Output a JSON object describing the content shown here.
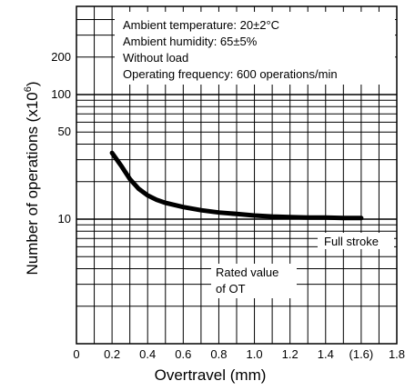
{
  "chart_data": {
    "type": "line",
    "xlabel": "Overtravel (mm)",
    "ylabel_main": "Number of operations  (x10",
    "ylabel_sup": "6",
    "ylabel_close": ")",
    "x_ticks": [
      "0",
      "0.2",
      "0.4",
      "0.6",
      "0.8",
      "1.0",
      "1.2",
      "1.4",
      "(1.6)",
      "1.8"
    ],
    "x_tick_values": [
      0,
      0.2,
      0.4,
      0.6,
      0.8,
      1.0,
      1.2,
      1.4,
      1.6,
      1.8
    ],
    "y_ticks": [
      "200",
      "100",
      "50",
      "10"
    ],
    "y_tick_values": [
      200,
      100,
      50,
      10
    ],
    "xlim": [
      0,
      1.8
    ],
    "ylim": [
      1,
      500
    ],
    "y_scale": "log",
    "grid": true,
    "series": [
      {
        "x": [
          0.2,
          0.25,
          0.3,
          0.35,
          0.4,
          0.45,
          0.5,
          0.6,
          0.7,
          0.8,
          0.9,
          1.0,
          1.1,
          1.2,
          1.3,
          1.4,
          1.5,
          1.6
        ],
        "y": [
          34,
          27,
          21,
          17.5,
          15.5,
          14.3,
          13.5,
          12.5,
          11.8,
          11.3,
          11.0,
          10.7,
          10.5,
          10.4,
          10.3,
          10.3,
          10.2,
          10.2
        ]
      }
    ],
    "annotations": {
      "conditions": [
        "Ambient temperature: 20±2°C",
        "Ambient humidity: 65±5%",
        "Without load",
        "Operating frequency: 600 operations/min"
      ],
      "full_stroke": "Full stroke",
      "rated_value_lines": [
        "Rated value",
        "of OT"
      ]
    }
  }
}
